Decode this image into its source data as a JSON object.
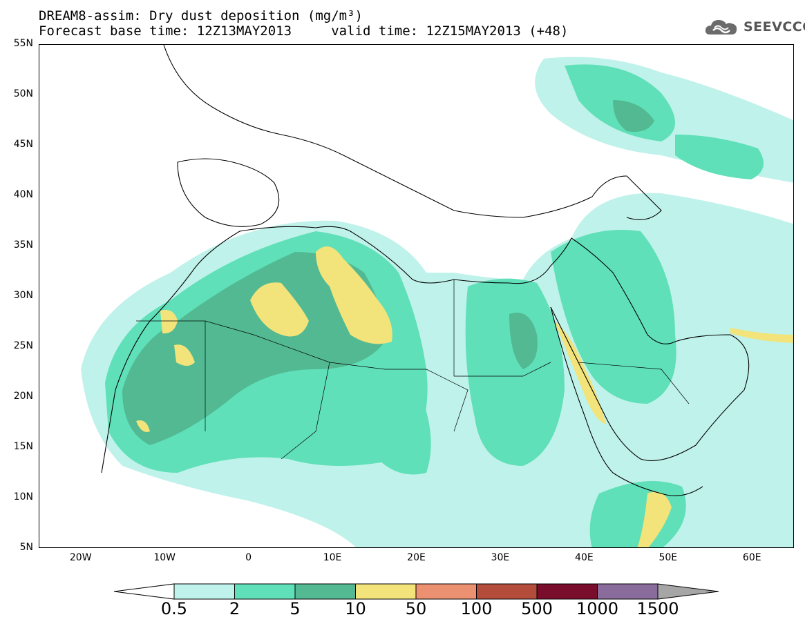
{
  "header": {
    "title_line1": "DREAM8-assim: Dry dust deposition (mg/m³)",
    "title_line2": "Forecast base time: 12Z13MAY2013     valid time: 12Z15MAY2013 (+48)",
    "logo_text": "SEEVCCC",
    "logo_icon": "cloud-logo-icon"
  },
  "map": {
    "lat_labels": [
      "55N",
      "50N",
      "45N",
      "40N",
      "35N",
      "30N",
      "25N",
      "20N",
      "15N",
      "10N",
      "5N"
    ],
    "lon_labels": [
      "20W",
      "10W",
      "0",
      "10E",
      "20E",
      "30E",
      "40E",
      "50E",
      "60E"
    ],
    "lon_range": [
      -25,
      65
    ],
    "lat_range": [
      5,
      55
    ]
  },
  "legend": {
    "labels": [
      "0.5",
      "2",
      "5",
      "10",
      "50",
      "100",
      "500",
      "1000",
      "1500"
    ],
    "colors": [
      "#bff2ea",
      "#5fe0b8",
      "#52b993",
      "#f2e37a",
      "#eb9070",
      "#b44c3c",
      "#7a0c2c",
      "#8a6c9c"
    ],
    "under_color": "#ffffff",
    "over_color": "#a6a6a6"
  }
}
